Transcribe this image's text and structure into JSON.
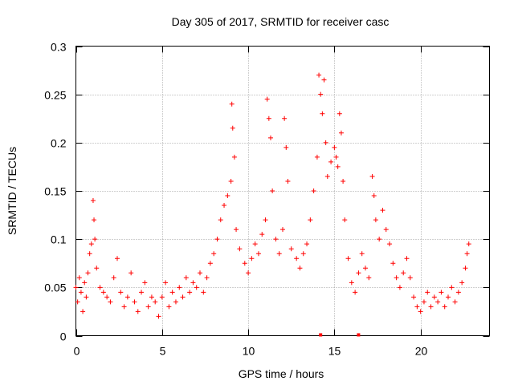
{
  "chart_data": {
    "type": "scatter",
    "title": "Day 305 of 2017, SRMTID for receiver casc",
    "xlabel": "GPS time / hours",
    "ylabel": "SRMTID / TECUs",
    "xlim": [
      0,
      24
    ],
    "ylim": [
      0,
      0.3
    ],
    "x_ticks": [
      0,
      5,
      10,
      15,
      20
    ],
    "x_tick_labels": [
      "0",
      "5",
      "10",
      "15",
      "20"
    ],
    "y_ticks": [
      0,
      0.05,
      0.1,
      0.15,
      0.2,
      0.25,
      0.3
    ],
    "y_tick_labels": [
      "0",
      "0.05",
      "0.1",
      "0.15",
      "0.2",
      "0.25",
      "0.3"
    ],
    "grid": true,
    "marker": "plus",
    "series": [
      {
        "name": "SRMTID",
        "color": "#ff0000",
        "points": [
          [
            0.0,
            0.05
          ],
          [
            0.1,
            0.035
          ],
          [
            0.2,
            0.06
          ],
          [
            0.3,
            0.045
          ],
          [
            0.4,
            0.025
          ],
          [
            0.5,
            0.055
          ],
          [
            0.6,
            0.04
          ],
          [
            0.7,
            0.065
          ],
          [
            0.8,
            0.085
          ],
          [
            0.9,
            0.095
          ],
          [
            1.0,
            0.14
          ],
          [
            1.05,
            0.12
          ],
          [
            1.1,
            0.1
          ],
          [
            1.2,
            0.07
          ],
          [
            1.4,
            0.05
          ],
          [
            1.6,
            0.045
          ],
          [
            1.8,
            0.04
          ],
          [
            2.0,
            0.035
          ],
          [
            2.2,
            0.06
          ],
          [
            2.4,
            0.08
          ],
          [
            2.6,
            0.045
          ],
          [
            2.8,
            0.03
          ],
          [
            3.0,
            0.04
          ],
          [
            3.2,
            0.065
          ],
          [
            3.4,
            0.035
          ],
          [
            3.6,
            0.025
          ],
          [
            3.8,
            0.045
          ],
          [
            4.0,
            0.055
          ],
          [
            4.2,
            0.03
          ],
          [
            4.4,
            0.04
          ],
          [
            4.6,
            0.035
          ],
          [
            4.8,
            0.02
          ],
          [
            5.0,
            0.04
          ],
          [
            5.2,
            0.055
          ],
          [
            5.4,
            0.03
          ],
          [
            5.6,
            0.045
          ],
          [
            5.8,
            0.035
          ],
          [
            6.0,
            0.05
          ],
          [
            6.2,
            0.04
          ],
          [
            6.4,
            0.06
          ],
          [
            6.6,
            0.045
          ],
          [
            6.8,
            0.055
          ],
          [
            7.0,
            0.05
          ],
          [
            7.2,
            0.065
          ],
          [
            7.4,
            0.045
          ],
          [
            7.6,
            0.06
          ],
          [
            7.8,
            0.075
          ],
          [
            8.0,
            0.085
          ],
          [
            8.2,
            0.1
          ],
          [
            8.4,
            0.12
          ],
          [
            8.6,
            0.135
          ],
          [
            8.8,
            0.145
          ],
          [
            9.0,
            0.16
          ],
          [
            9.05,
            0.24
          ],
          [
            9.1,
            0.215
          ],
          [
            9.2,
            0.185
          ],
          [
            9.3,
            0.11
          ],
          [
            9.5,
            0.09
          ],
          [
            9.8,
            0.075
          ],
          [
            10.0,
            0.065
          ],
          [
            10.2,
            0.08
          ],
          [
            10.4,
            0.095
          ],
          [
            10.6,
            0.085
          ],
          [
            10.8,
            0.105
          ],
          [
            11.0,
            0.12
          ],
          [
            11.1,
            0.245
          ],
          [
            11.2,
            0.225
          ],
          [
            11.3,
            0.205
          ],
          [
            11.4,
            0.15
          ],
          [
            11.6,
            0.1
          ],
          [
            11.8,
            0.085
          ],
          [
            12.0,
            0.11
          ],
          [
            12.1,
            0.225
          ],
          [
            12.2,
            0.195
          ],
          [
            12.3,
            0.16
          ],
          [
            12.5,
            0.09
          ],
          [
            12.8,
            0.08
          ],
          [
            13.0,
            0.07
          ],
          [
            13.2,
            0.085
          ],
          [
            13.4,
            0.095
          ],
          [
            13.6,
            0.12
          ],
          [
            13.8,
            0.15
          ],
          [
            14.0,
            0.185
          ],
          [
            14.1,
            0.27
          ],
          [
            14.2,
            0.25
          ],
          [
            14.3,
            0.23
          ],
          [
            14.4,
            0.265
          ],
          [
            14.5,
            0.2
          ],
          [
            14.6,
            0.165
          ],
          [
            14.8,
            0.18
          ],
          [
            15.0,
            0.195
          ],
          [
            15.1,
            0.185
          ],
          [
            15.2,
            0.175
          ],
          [
            15.3,
            0.23
          ],
          [
            15.4,
            0.21
          ],
          [
            15.5,
            0.16
          ],
          [
            15.6,
            0.12
          ],
          [
            15.8,
            0.08
          ],
          [
            16.0,
            0.055
          ],
          [
            16.2,
            0.045
          ],
          [
            16.4,
            0.065
          ],
          [
            16.6,
            0.085
          ],
          [
            16.8,
            0.07
          ],
          [
            17.0,
            0.06
          ],
          [
            17.2,
            0.165
          ],
          [
            17.3,
            0.145
          ],
          [
            17.4,
            0.12
          ],
          [
            17.6,
            0.1
          ],
          [
            17.8,
            0.13
          ],
          [
            18.0,
            0.11
          ],
          [
            18.2,
            0.095
          ],
          [
            18.4,
            0.075
          ],
          [
            18.6,
            0.06
          ],
          [
            18.8,
            0.05
          ],
          [
            19.0,
            0.065
          ],
          [
            19.2,
            0.08
          ],
          [
            19.4,
            0.06
          ],
          [
            19.6,
            0.04
          ],
          [
            19.8,
            0.03
          ],
          [
            20.0,
            0.025
          ],
          [
            20.2,
            0.035
          ],
          [
            20.4,
            0.045
          ],
          [
            20.6,
            0.03
          ],
          [
            20.8,
            0.04
          ],
          [
            21.0,
            0.035
          ],
          [
            21.2,
            0.045
          ],
          [
            21.4,
            0.03
          ],
          [
            21.6,
            0.04
          ],
          [
            21.8,
            0.05
          ],
          [
            22.0,
            0.035
          ],
          [
            22.2,
            0.045
          ],
          [
            22.4,
            0.055
          ],
          [
            22.6,
            0.07
          ],
          [
            22.7,
            0.085
          ],
          [
            22.8,
            0.095
          ]
        ]
      }
    ],
    "axis_markers": [
      14.2,
      16.4
    ]
  }
}
